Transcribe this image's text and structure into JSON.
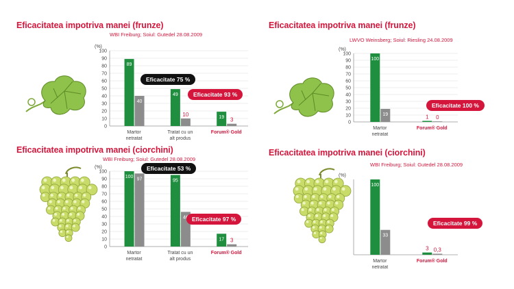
{
  "colors": {
    "title": "#d4163c",
    "treated_bar": "#1f8f3f",
    "untreated_bar": "#8c8c8c",
    "badge_dark": "#111111",
    "badge_red": "#d4163c"
  },
  "chart_data": [
    {
      "id": "p1",
      "type": "bar",
      "title": "Eficacitatea impotriva manei (frunze)",
      "subtitle": "WBI Freiburg;  Soiul: Gutedel 28.08.2009",
      "ylabel": "(%)",
      "ylim": [
        0,
        100
      ],
      "yticks": [
        0,
        10,
        20,
        30,
        40,
        50,
        60,
        70,
        80,
        90,
        100
      ],
      "grid": true,
      "categories": [
        "Martor netratat",
        "Tratat cu un alt produs",
        "Forum® Gold"
      ],
      "category_lines": [
        [
          "Martor",
          "netratat"
        ],
        [
          "Tratat cu un",
          "alt produs"
        ],
        [
          "Forum® Gold"
        ]
      ],
      "category_highlight": [
        false,
        false,
        true
      ],
      "series": [
        {
          "role": "green",
          "values": [
            89,
            49,
            19
          ]
        },
        {
          "role": "gray",
          "values": [
            40,
            10,
            3
          ]
        }
      ],
      "value_labels": [
        [
          "89",
          "49",
          "19"
        ],
        [
          "40",
          "10",
          "3"
        ]
      ],
      "badges": [
        {
          "text": "Eficacitate 75 %",
          "style": "dark"
        },
        {
          "text": "Eficacitate 93 %",
          "style": "red"
        }
      ],
      "illustration": "vine-leaf"
    },
    {
      "id": "p2",
      "type": "bar",
      "title": "Eficacitatea impotriva manei (frunze)",
      "subtitle": "LWVO Weinsberg;  Soiul: Riesling 24.08.2009",
      "ylabel": "(%)",
      "ylim": [
        0,
        100
      ],
      "yticks": [
        0,
        10,
        20,
        30,
        40,
        50,
        60,
        70,
        80,
        90,
        100
      ],
      "grid": true,
      "categories": [
        "Martor netratat",
        "Forum® Gold"
      ],
      "category_lines": [
        [
          "Martor",
          "netratat"
        ],
        [
          "Forum® Gold"
        ]
      ],
      "category_highlight": [
        false,
        true
      ],
      "series": [
        {
          "role": "green",
          "values": [
            100,
            1
          ]
        },
        {
          "role": "gray",
          "values": [
            19,
            0
          ]
        }
      ],
      "value_labels": [
        [
          "100",
          "1"
        ],
        [
          "19",
          "0"
        ]
      ],
      "badges": [
        {
          "text": "Eficacitate 100 %",
          "style": "red"
        }
      ],
      "illustration": "vine-leaf"
    },
    {
      "id": "p3",
      "type": "bar",
      "title": "Eficacitatea impotriva manei (ciorchini)",
      "subtitle": "WBI Freiburg;  Soiul: Gutedel 28.08.2009",
      "ylabel": "(%)",
      "ylim": [
        0,
        100
      ],
      "yticks": [
        0,
        10,
        20,
        30,
        40,
        50,
        60,
        70,
        80,
        90,
        100
      ],
      "grid": true,
      "categories": [
        "Martor netratat",
        "Tratat cu un alt produs",
        "Forum® Gold"
      ],
      "category_lines": [
        [
          "Martor",
          "netratat"
        ],
        [
          "Tratat cu un",
          "alt produs"
        ],
        [
          "Forum® Gold"
        ]
      ],
      "category_highlight": [
        false,
        false,
        true
      ],
      "series": [
        {
          "role": "green",
          "values": [
            100,
            95,
            17
          ]
        },
        {
          "role": "gray",
          "values": [
            97,
            46,
            3
          ]
        }
      ],
      "value_labels": [
        [
          "100",
          "95",
          "17"
        ],
        [
          "97",
          "46",
          "3"
        ]
      ],
      "badges": [
        {
          "text": "Eficacitate 53 %",
          "style": "dark"
        },
        {
          "text": "Eficacitate 97 %",
          "style": "red"
        }
      ],
      "illustration": "grape-bunch"
    },
    {
      "id": "p4",
      "type": "bar",
      "title": "Eficacitatea impotriva manei (ciorchini)",
      "subtitle": "WBI Freiburg;  Soiul: Gutedel 28.08.2009",
      "ylabel": "(%)",
      "ylim": [
        0,
        100
      ],
      "yticks": [],
      "grid": false,
      "categories": [
        "Martor netratat",
        "Forum® Gold"
      ],
      "category_lines": [
        [
          "Martor",
          "netratat"
        ],
        [
          "Forum® Gold"
        ]
      ],
      "category_highlight": [
        false,
        true
      ],
      "series": [
        {
          "role": "green",
          "values": [
            100,
            3
          ]
        },
        {
          "role": "gray",
          "values": [
            33,
            0.3
          ]
        }
      ],
      "value_labels": [
        [
          "100",
          "3"
        ],
        [
          "33",
          "0,3"
        ]
      ],
      "badges": [
        {
          "text": "Eficacitate 99 %",
          "style": "red"
        }
      ],
      "illustration": "grape-bunch"
    }
  ]
}
